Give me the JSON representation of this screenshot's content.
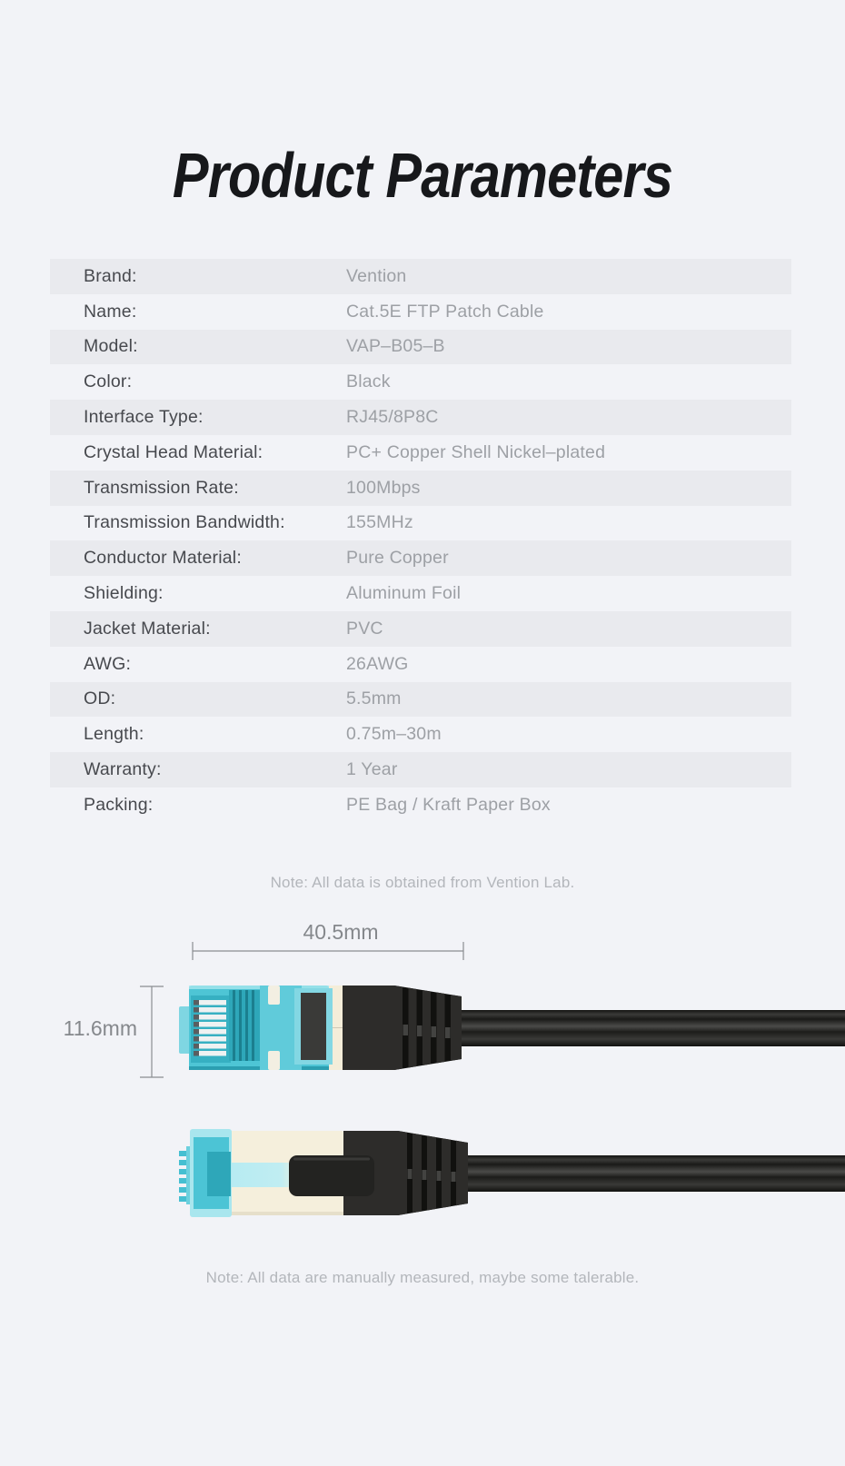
{
  "page": {
    "title": "Product Parameters",
    "background": "#f2f3f7"
  },
  "table": {
    "stripe_color": "#e9eaee",
    "label_color": "#47494e",
    "value_color": "#9da0a5",
    "rows": [
      {
        "label": "Brand:",
        "value": "Vention"
      },
      {
        "label": "Name:",
        "value": "Cat.5E FTP Patch Cable"
      },
      {
        "label": "Model:",
        "value": "VAP–B05–B"
      },
      {
        "label": "Color:",
        "value": "Black"
      },
      {
        "label": "Interface Type:",
        "value": "RJ45/8P8C"
      },
      {
        "label": "Crystal Head Material:",
        "value": "PC+ Copper Shell Nickel–plated"
      },
      {
        "label": "Transmission Rate:",
        "value": "100Mbps"
      },
      {
        "label": "Transmission Bandwidth:",
        "value": "155MHz"
      },
      {
        "label": "Conductor Material:",
        "value": "Pure Copper"
      },
      {
        "label": "Shielding:",
        "value": "Aluminum Foil"
      },
      {
        "label": "Jacket Material:",
        "value": "PVC"
      },
      {
        "label": "AWG:",
        "value": "26AWG"
      },
      {
        "label": "OD:",
        "value": "5.5mm"
      },
      {
        "label": "Length:",
        "value": "0.75m–30m"
      },
      {
        "label": "Warranty:",
        "value": "1 Year"
      },
      {
        "label": "Packing:",
        "value": "PE Bag / Kraft Paper Box"
      }
    ]
  },
  "notes": {
    "lab": "Note: All data is obtained from Vention Lab.",
    "measure": "Note: All data are manually measured, maybe some talerable."
  },
  "diagram": {
    "width_label": "40.5mm",
    "height_label": "11.6mm",
    "colors": {
      "teal": "#4cc4d5",
      "teal_light": "#a9e6ee",
      "ivory": "#f5efdc",
      "boot_black": "#2d2c2a",
      "cable_black": "#242422",
      "dimension_gray": "#85888c"
    }
  }
}
